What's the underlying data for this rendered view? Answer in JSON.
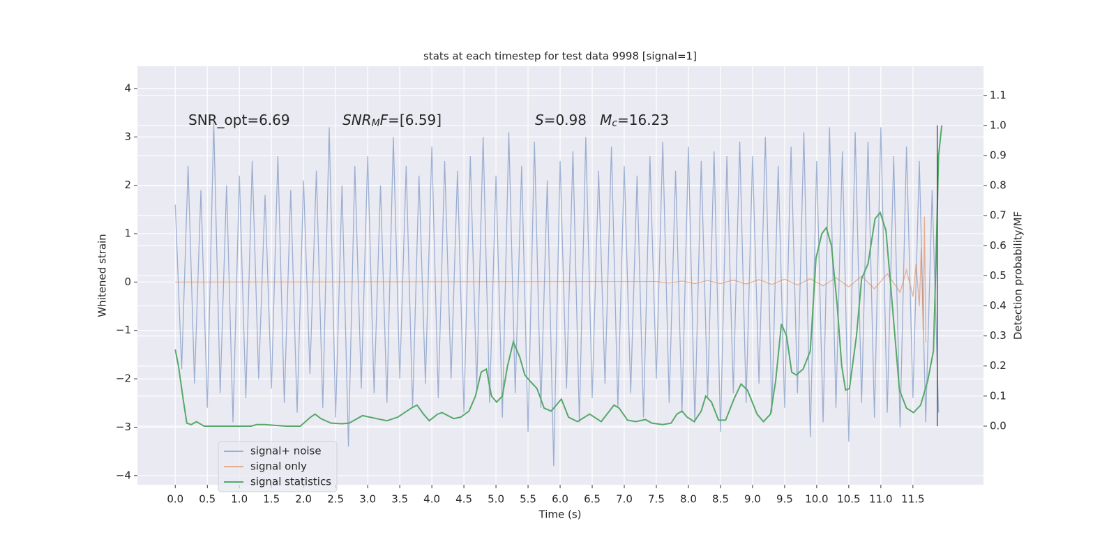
{
  "chart_data": {
    "type": "line",
    "title": "stats at each timestep for test data 9998 [signal=1]",
    "xlabel": "Time (s)",
    "ylabel": "Whitened strain",
    "y2label": "Detection probability/MF",
    "annotations": [
      [
        {
          "text": "SNR_opt=6.69"
        }
      ],
      [
        {
          "text": "SNR",
          "italic": true
        },
        {
          "text": "M",
          "italic": true,
          "sub": true
        },
        {
          "text": "F",
          "italic": true
        },
        {
          "text": "=[6.59]"
        }
      ],
      [
        {
          "text": "S",
          "italic": true
        },
        {
          "text": "=0.98   "
        },
        {
          "text": "M",
          "italic": true
        },
        {
          "text": "c",
          "italic": true,
          "sub": true
        },
        {
          "text": "=16.23"
        }
      ]
    ],
    "xlim": [
      -0.59,
      12.6
    ],
    "ylim": [
      -4.19,
      4.46
    ],
    "y2lim": [
      -0.195,
      1.197
    ],
    "xticks": [
      {
        "value": 0,
        "label": "0.0"
      },
      0.5,
      {
        "value": 1,
        "label": "1.0"
      },
      1.5,
      {
        "value": 2,
        "label": "2.0"
      },
      2.5,
      {
        "value": 3,
        "label": "3.0"
      },
      3.5,
      {
        "value": 4,
        "label": "4.0"
      },
      4.5,
      {
        "value": 5,
        "label": "5.0"
      },
      5.5,
      {
        "value": 6,
        "label": "6.0"
      },
      6.5,
      {
        "value": 7,
        "label": "7.0"
      },
      7.5,
      {
        "value": 8,
        "label": "8.0"
      },
      8.5,
      {
        "value": 9,
        "label": "9.0"
      },
      9.5,
      {
        "value": 10,
        "label": "10.0"
      },
      10.5,
      {
        "value": 11,
        "label": "11.0"
      },
      11.5
    ],
    "yticks": [
      {
        "value": -4,
        "label": "−4"
      },
      {
        "value": -3,
        "label": "−3"
      },
      {
        "value": -2,
        "label": "−2"
      },
      {
        "value": -1,
        "label": "−1"
      },
      0,
      1,
      2,
      3,
      4
    ],
    "y2ticks": [
      {
        "value": 0,
        "label": "0.0"
      },
      0.1,
      0.2,
      0.3,
      0.4,
      0.5,
      0.6,
      0.7,
      0.8,
      0.9,
      {
        "value": 1,
        "label": "1.0"
      },
      1.1
    ],
    "grid": true,
    "legend": "lower left",
    "series": [
      {
        "name": "signal+ noise",
        "color": "#4c72b0",
        "opacity": 0.5,
        "x": [
          0,
          0.1,
          0.2,
          0.3,
          0.4,
          0.5,
          0.6,
          0.7,
          0.8,
          0.9,
          1,
          1.1,
          1.2,
          1.3,
          1.4,
          1.5,
          1.6,
          1.7,
          1.8,
          1.9,
          2,
          2.1,
          2.2,
          2.3,
          2.4,
          2.5,
          2.6,
          2.7,
          2.8,
          2.9,
          3,
          3.1,
          3.2,
          3.3,
          3.4,
          3.5,
          3.6,
          3.7,
          3.8,
          3.9,
          4,
          4.1,
          4.2,
          4.3,
          4.4,
          4.5,
          4.6,
          4.7,
          4.8,
          4.9,
          5,
          5.1,
          5.2,
          5.3,
          5.4,
          5.5,
          5.6,
          5.7,
          5.8,
          5.9,
          6,
          6.1,
          6.2,
          6.3,
          6.4,
          6.5,
          6.6,
          6.7,
          6.8,
          6.9,
          7,
          7.1,
          7.2,
          7.3,
          7.4,
          7.5,
          7.6,
          7.7,
          7.8,
          7.9,
          8,
          8.1,
          8.2,
          8.3,
          8.4,
          8.5,
          8.6,
          8.7,
          8.8,
          8.9,
          9,
          9.1,
          9.2,
          9.3,
          9.4,
          9.5,
          9.6,
          9.7,
          9.8,
          9.9,
          10,
          10.1,
          10.2,
          10.3,
          10.4,
          10.5,
          10.6,
          10.7,
          10.8,
          10.9,
          11,
          11.1,
          11.2,
          11.3,
          11.4,
          11.5,
          11.6,
          11.7,
          11.8,
          11.9
        ],
        "values": [
          1.6,
          -1.8,
          2.4,
          -2.1,
          1.9,
          -2.6,
          3.3,
          -2.3,
          2.0,
          -2.9,
          2.2,
          -2.4,
          2.5,
          -2.0,
          1.8,
          -2.2,
          2.6,
          -2.5,
          1.9,
          -2.7,
          2.1,
          -1.9,
          2.3,
          -2.6,
          3.2,
          -2.8,
          2.0,
          -3.4,
          2.4,
          -2.2,
          2.6,
          -2.3,
          2.0,
          -2.5,
          3.0,
          -2.0,
          2.4,
          -2.6,
          2.2,
          -2.1,
          2.8,
          -2.4,
          2.5,
          -2.0,
          2.3,
          -2.7,
          2.6,
          -2.2,
          3.0,
          -2.5,
          2.2,
          -2.8,
          3.1,
          -2.3,
          2.4,
          -3.1,
          2.9,
          -2.6,
          2.1,
          -3.8,
          2.5,
          -2.2,
          2.7,
          -2.9,
          3.0,
          -2.4,
          2.3,
          -2.1,
          2.8,
          -2.6,
          2.4,
          -2.3,
          2.2,
          -2.8,
          2.6,
          -2.0,
          2.9,
          -2.5,
          2.3,
          -2.7,
          2.8,
          -2.9,
          2.5,
          -2.4,
          2.7,
          -3.1,
          2.6,
          -2.3,
          2.9,
          -2.5,
          2.6,
          -2.1,
          3.0,
          -2.7,
          2.4,
          -2.6,
          2.8,
          -2.3,
          3.1,
          -3.2,
          2.5,
          -2.9,
          3.2,
          -2.6,
          2.7,
          -3.3,
          3.1,
          -2.5,
          2.9,
          -2.8,
          3.2,
          -2.7,
          2.6,
          -3.0,
          2.8,
          -2.4,
          2.5,
          -2.9,
          1.9,
          -2.7
        ]
      },
      {
        "name": "signal only",
        "color": "#dd8452",
        "opacity": 0.6,
        "x": [
          0,
          7.5,
          7.7,
          7.9,
          8.1,
          8.3,
          8.5,
          8.7,
          8.9,
          9.1,
          9.3,
          9.5,
          9.7,
          9.9,
          10.1,
          10.3,
          10.5,
          10.7,
          10.9,
          11.1,
          11.3,
          11.4,
          11.5,
          11.55,
          11.6,
          11.63,
          11.66,
          11.68,
          11.7
        ],
        "values": [
          0,
          0.01,
          -0.02,
          0.02,
          -0.03,
          0.03,
          -0.03,
          0.04,
          -0.04,
          0.05,
          -0.05,
          0.06,
          -0.06,
          0.07,
          -0.08,
          0.09,
          -0.1,
          0.12,
          -0.14,
          0.17,
          -0.21,
          0.25,
          -0.3,
          0.38,
          -0.5,
          0.7,
          -1.0,
          1.35,
          -1.25
        ]
      },
      {
        "name": "signal statistics",
        "color": "#55a868",
        "opacity": 1,
        "axis": "y2",
        "x": [
          0,
          0.05,
          0.13,
          0.18,
          0.25,
          0.33,
          0.45,
          0.86,
          1.18,
          1.27,
          1.4,
          1.73,
          1.95,
          2.11,
          2.18,
          2.27,
          2.43,
          2.6,
          2.71,
          2.92,
          3.14,
          3.3,
          3.47,
          3.68,
          3.77,
          3.87,
          3.96,
          4.09,
          4.16,
          4.34,
          4.45,
          4.58,
          4.68,
          4.77,
          4.85,
          4.93,
          5.01,
          5.1,
          5.18,
          5.27,
          5.37,
          5.45,
          5.53,
          5.64,
          5.75,
          5.86,
          6.02,
          6.13,
          6.27,
          6.46,
          6.64,
          6.84,
          6.92,
          7.05,
          7.18,
          7.33,
          7.43,
          7.6,
          7.73,
          7.82,
          7.9,
          7.98,
          8.09,
          8.2,
          8.27,
          8.36,
          8.47,
          8.58,
          8.71,
          8.82,
          8.92,
          9.07,
          9.17,
          9.28,
          9.36,
          9.45,
          9.53,
          9.61,
          9.68,
          9.79,
          9.9,
          9.99,
          10.08,
          10.15,
          10.23,
          10.32,
          10.39,
          10.45,
          10.51,
          10.62,
          10.7,
          10.8,
          10.91,
          10.99,
          11.08,
          11.18,
          11.29,
          11.4,
          11.51,
          11.62,
          11.73,
          11.82,
          11.86,
          11.9,
          11.95
        ],
        "values": [
          0.255,
          0.2,
          0.08,
          0.01,
          0.005,
          0.015,
          0,
          0,
          0,
          0.005,
          0.005,
          0,
          0,
          0.03,
          0.04,
          0.025,
          0.01,
          0.008,
          0.01,
          0.035,
          0.025,
          0.018,
          0.03,
          0.06,
          0.07,
          0.04,
          0.018,
          0.04,
          0.045,
          0.025,
          0.03,
          0.05,
          0.1,
          0.18,
          0.19,
          0.1,
          0.08,
          0.1,
          0.2,
          0.28,
          0.23,
          0.17,
          0.15,
          0.125,
          0.06,
          0.05,
          0.09,
          0.03,
          0.015,
          0.04,
          0.015,
          0.07,
          0.06,
          0.02,
          0.015,
          0.022,
          0.01,
          0.005,
          0.01,
          0.04,
          0.05,
          0.03,
          0.015,
          0.05,
          0.1,
          0.08,
          0.02,
          0.02,
          0.09,
          0.14,
          0.12,
          0.04,
          0.015,
          0.04,
          0.15,
          0.34,
          0.3,
          0.18,
          0.17,
          0.19,
          0.25,
          0.56,
          0.64,
          0.66,
          0.6,
          0.4,
          0.2,
          0.12,
          0.125,
          0.3,
          0.49,
          0.54,
          0.69,
          0.71,
          0.65,
          0.4,
          0.12,
          0.06,
          0.045,
          0.07,
          0.15,
          0.25,
          0.55,
          0.9,
          1.0
        ]
      }
    ],
    "vline": {
      "x": 11.88,
      "y2_range": [
        0,
        1
      ],
      "color": "#333333"
    }
  }
}
